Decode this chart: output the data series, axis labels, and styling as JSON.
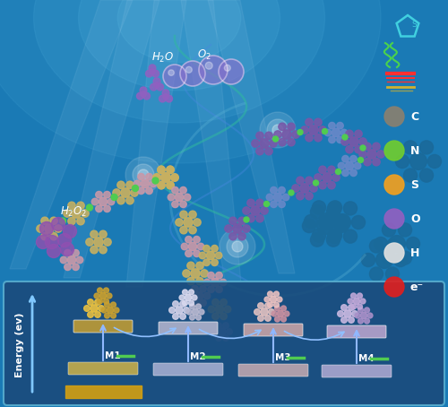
{
  "bg_main": "#1a7ab5",
  "bg_top": "#3a9ad5",
  "bg_light": "#5abae5",
  "panel_bg": "#1a4a7a",
  "panel_border": "#5ab0d0",
  "energy_axis_label": "Energy (ev)",
  "energy_labels": [
    "M1",
    "M2",
    "M3",
    "M4"
  ],
  "legend_items": [
    {
      "label": "C",
      "color": "#888070"
    },
    {
      "label": "N",
      "color": "#70cc30"
    },
    {
      "label": "S",
      "color": "#f0a020"
    },
    {
      "label": "O",
      "color": "#9060c0"
    },
    {
      "label": "H",
      "color": "#e0e0e0"
    },
    {
      "label": "e⁻",
      "color": "#dd2020"
    }
  ],
  "platform_colors": [
    "#c8a030",
    "#b8b8d0",
    "#d0a8a8",
    "#c0a8d0"
  ],
  "platform_base_colors": [
    "#e8c040",
    "#c0c0e0",
    "#e0b8b8",
    "#c8b8e0"
  ],
  "water_label": "H₂O  O₂",
  "h2o2_label": "H₂O₂",
  "molecule_yellow": "#c8b060",
  "molecule_purple": "#7858a8",
  "molecule_pink": "#c898a8",
  "molecule_blue": "#6888c8",
  "molecule_teal": "#40c0a0",
  "connector_green": "#50cc50",
  "swirl_teal": "#30b8a0",
  "swirl_blue": "#4888e0",
  "bubble_purple": "#8870cc",
  "bubble_outline": "#b0a8e0",
  "light_ray_color": "#d0eeff",
  "glow_color": "#ffffff"
}
